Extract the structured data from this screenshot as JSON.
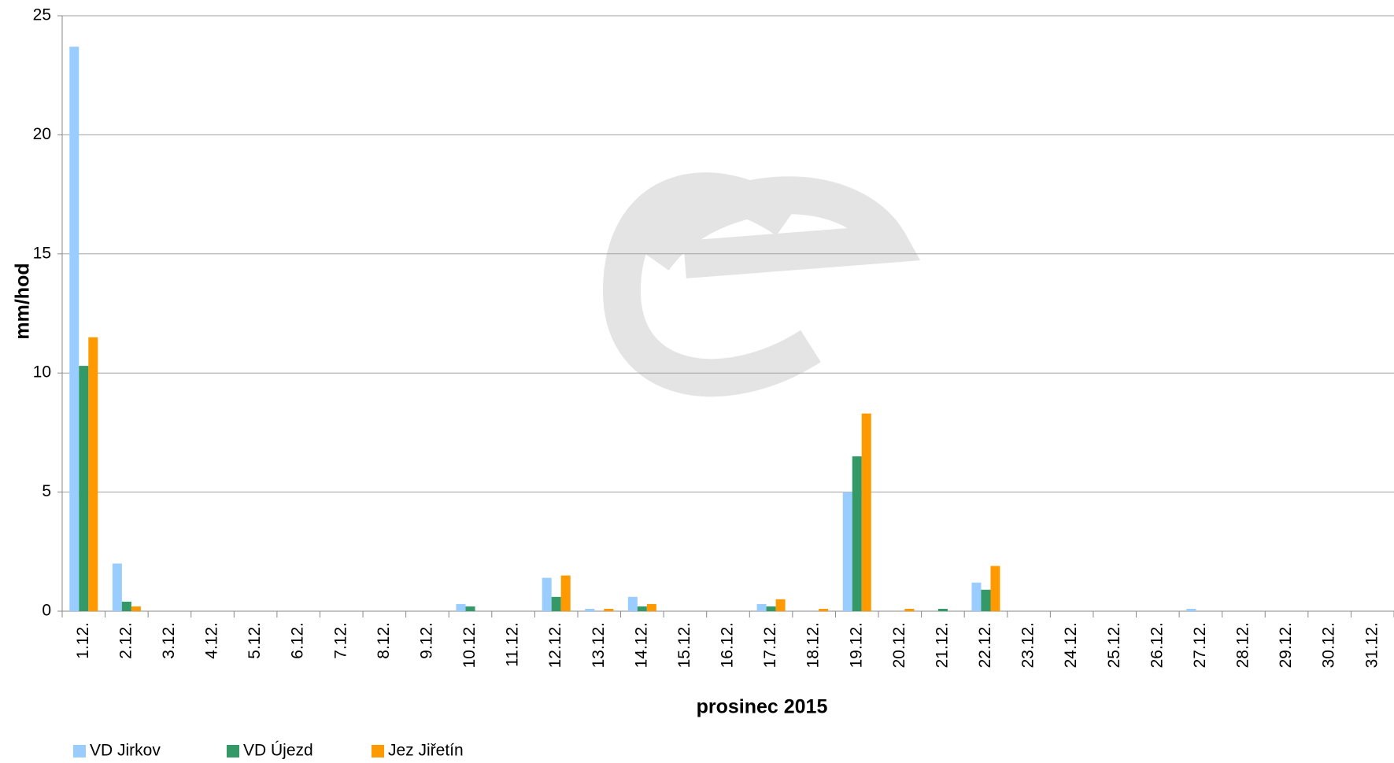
{
  "chart_data": {
    "type": "bar",
    "x_label": "prosinec  2015",
    "y_label": "mm/hod",
    "categories": [
      "1.12.",
      "2.12.",
      "3.12.",
      "4.12.",
      "5.12.",
      "6.12.",
      "7.12.",
      "8.12.",
      "9.12.",
      "10.12.",
      "11.12.",
      "12.12.",
      "13.12.",
      "14.12.",
      "15.12.",
      "16.12.",
      "17.12.",
      "18.12.",
      "19.12.",
      "20.12.",
      "21.12.",
      "22.12.",
      "23.12.",
      "24.12.",
      "25.12.",
      "26.12.",
      "27.12.",
      "28.12.",
      "29.12.",
      "30.12.",
      "31.12."
    ],
    "series": [
      {
        "name": "VD Jirkov",
        "color": "#99ccff",
        "values": [
          23.7,
          2.0,
          0,
          0,
          0,
          0,
          0,
          0,
          0,
          0.3,
          0,
          1.4,
          0.1,
          0.6,
          0,
          0,
          0.3,
          0,
          5.0,
          0,
          0,
          1.2,
          0,
          0,
          0,
          0,
          0.1,
          0,
          0,
          0,
          0
        ]
      },
      {
        "name": "VD Újezd",
        "color": "#339966",
        "values": [
          10.3,
          0.4,
          0,
          0,
          0,
          0,
          0,
          0,
          0,
          0.2,
          0,
          0.6,
          0,
          0.2,
          0,
          0,
          0.2,
          0,
          6.5,
          0,
          0.1,
          0.9,
          0,
          0,
          0,
          0,
          0,
          0,
          0,
          0,
          0
        ]
      },
      {
        "name": "Jez Jiřetín",
        "color": "#ff9900",
        "values": [
          11.5,
          0.2,
          0,
          0,
          0,
          0,
          0,
          0,
          0,
          0,
          0,
          1.5,
          0.1,
          0.3,
          0,
          0,
          0.5,
          0.1,
          8.3,
          0.1,
          0,
          1.9,
          0,
          0,
          0,
          0,
          0,
          0,
          0,
          0,
          0
        ]
      }
    ],
    "ylim": [
      0,
      25
    ],
    "yticks": [
      0,
      5,
      10,
      15,
      20,
      25
    ],
    "grid": true,
    "legend": "bottom-left"
  }
}
